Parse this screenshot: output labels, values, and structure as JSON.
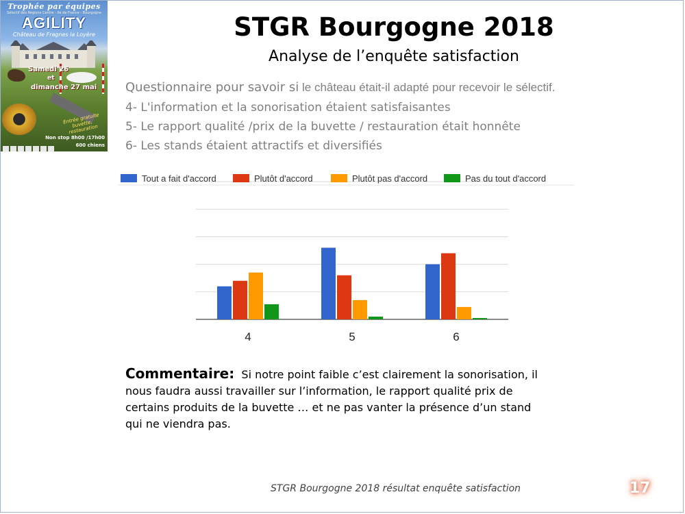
{
  "poster": {
    "heading": "Trophée par équipes",
    "subheading": "Sélectif des Régions Centre - Ile de France - Bourgogne",
    "event": "AGILITY",
    "venue": "Château de Fragnes la Loyère",
    "date_line1": "Samedi 26",
    "date_line2": "et",
    "date_line3": "dimanche 27 mai",
    "entry_note": "Entrée gratuite buvette, restauration",
    "hours": "Non stop 8h00 /17h00",
    "dogs": "600 chiens"
  },
  "title": "STGR Bourgogne 2018",
  "subtitle": "Analyse de l’enquête satisfaction",
  "questions": {
    "intro_lead": "Questionnaire pour savoir si",
    "intro_rest": " le château était-il adapté pour recevoir le sélectif.",
    "items": [
      "4-  L'information et la sonorisation étaient satisfaisantes",
      "5-  Le rapport qualité /prix de la buvette / restauration était honnête",
      "6-  Les stands étaient attractifs et diversifiés"
    ]
  },
  "chart_data": {
    "type": "bar",
    "categories": [
      "4",
      "5",
      "6"
    ],
    "ylim": [
      0,
      50
    ],
    "grid": true,
    "legend_position": "top",
    "series": [
      {
        "name": "Tout a fait d'accord",
        "color": "#3366cc",
        "values": [
          12,
          26,
          20
        ]
      },
      {
        "name": "Plutôt d'accord",
        "color": "#dc3912",
        "values": [
          14,
          16,
          24
        ]
      },
      {
        "name": "Plutôt pas d'accord",
        "color": "#ff9900",
        "values": [
          17,
          7,
          4.5
        ]
      },
      {
        "name": "Pas du tout d'accord",
        "color": "#109618",
        "values": [
          5.5,
          1,
          0.5
        ]
      }
    ]
  },
  "comment": {
    "label": "Commentaire:",
    "text": "Si notre point faible c’est clairement la sonorisation, il nous faudra aussi travailler sur l’information,  le rapport qualité prix de certains produits de la buvette … et ne pas vanter la présence d’un stand qui ne viendra pas."
  },
  "footer": "STGR Bourgogne 2018 résultat enquête satisfaction",
  "page_number": "17"
}
